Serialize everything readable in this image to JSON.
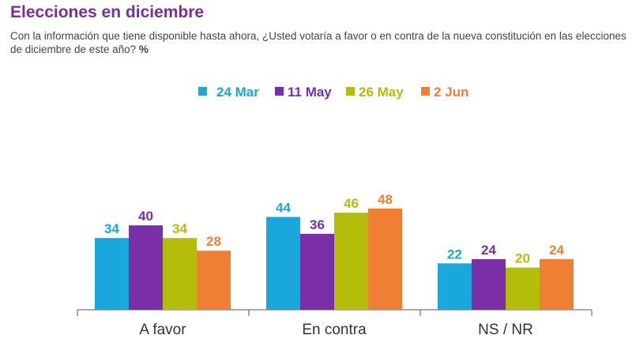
{
  "header": {
    "title": "Elecciones en diciembre",
    "question": "Con la información que tiene disponible hasta ahora, ¿Usted votaría a favor o en contra de la nueva constitución en las elecciones de diciembre de este año?",
    "unit": "%"
  },
  "colors": {
    "title": "#7a2e9e",
    "series": [
      "#1aa8dc",
      "#7a2fa6",
      "#b5bd0b",
      "#ef7f35"
    ],
    "axis": "#555555",
    "category_text": "#333333"
  },
  "chart_data": {
    "type": "bar",
    "title": "",
    "xlabel": "",
    "ylabel": "",
    "categories": [
      "A favor",
      "En contra",
      "NS / NR"
    ],
    "series": [
      {
        "name": "24 Mar",
        "values": [
          34,
          44,
          22
        ]
      },
      {
        "name": "11 May",
        "values": [
          40,
          36,
          24
        ]
      },
      {
        "name": "26 May",
        "values": [
          34,
          46,
          20
        ]
      },
      {
        "name": "2 Jun",
        "values": [
          28,
          48,
          24
        ]
      }
    ],
    "ylim": [
      0,
      55
    ],
    "grid": false,
    "legend": "top-center",
    "data_labels": true
  }
}
